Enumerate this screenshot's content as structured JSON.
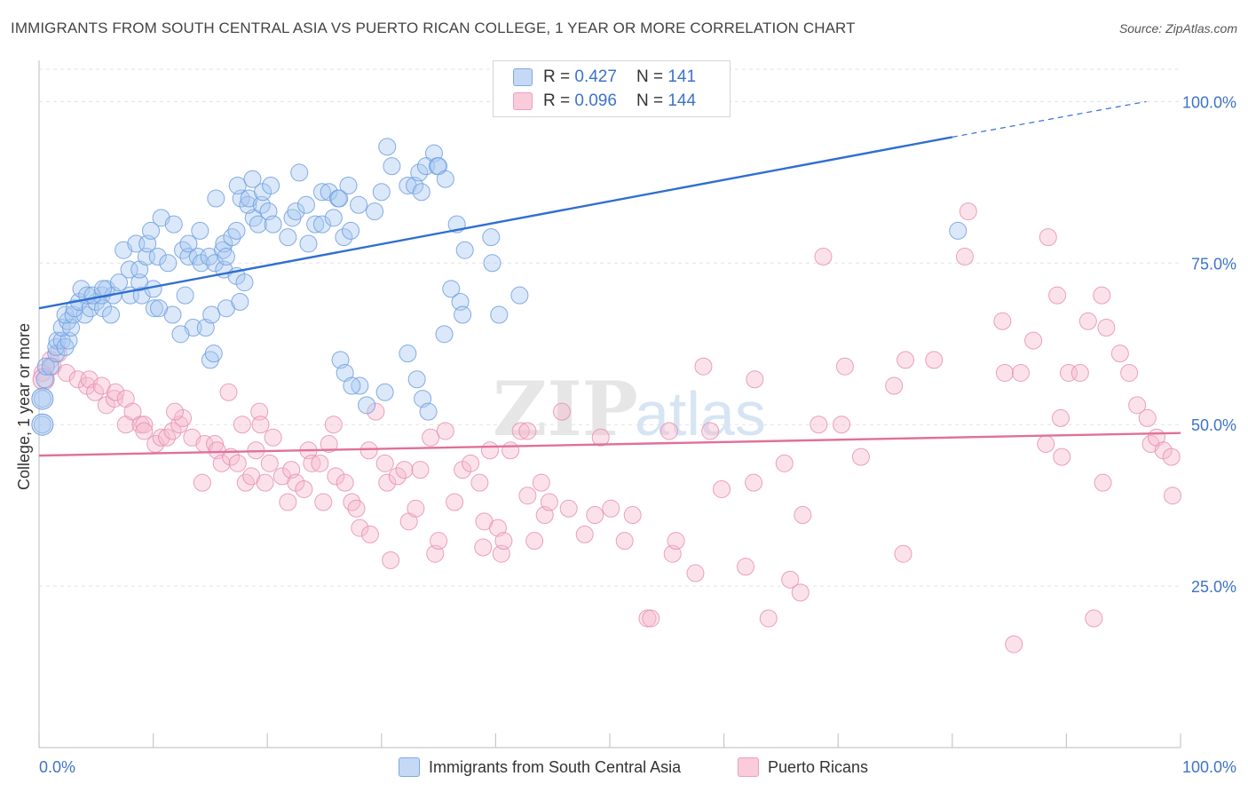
{
  "header": {
    "title": "IMMIGRANTS FROM SOUTH CENTRAL ASIA VS PUERTO RICAN COLLEGE, 1 YEAR OR MORE CORRELATION CHART",
    "source": "Source: ZipAtlas.com"
  },
  "watermark": {
    "zip": "ZIP",
    "atlas": "atlas"
  },
  "legend": {
    "r_label": "R =",
    "n_label": "N =",
    "series": [
      {
        "r": "0.427",
        "n": "141"
      },
      {
        "r": "0.096",
        "n": "144"
      }
    ]
  },
  "colors": {
    "blue_fill": "#a9c8f0",
    "blue_stroke": "#6f9fe0",
    "blue_line": "#2f6fd0",
    "pink_fill": "#f6b9cd",
    "pink_stroke": "#e890b0",
    "pink_line": "#e0709a",
    "axis_label": "#3d73c9",
    "grid": "#e3e3e3"
  },
  "chart_data": {
    "type": "scatter",
    "title": "IMMIGRANTS FROM SOUTH CENTRAL ASIA VS PUERTO RICAN COLLEGE, 1 YEAR OR MORE CORRELATION CHART",
    "xlabel": "",
    "ylabel": "College, 1 year or more",
    "xlim": [
      0,
      100
    ],
    "ylim": [
      0,
      105
    ],
    "x_tick_labels": [
      "0.0%",
      "100.0%"
    ],
    "y_ticks": [
      25,
      50,
      75,
      100
    ],
    "y_tick_labels": [
      "25.0%",
      "50.0%",
      "75.0%",
      "100.0%"
    ],
    "grid": true,
    "series": [
      {
        "name": "Immigrants from South Central Asia",
        "color": "blue",
        "trend": {
          "x0": 0,
          "y0": 68,
          "x1": 80,
          "y1": 94.5,
          "dash_to_x": 97,
          "dash_to_y": 100
        },
        "points": [
          [
            0.3,
            50
          ],
          [
            0.3,
            54
          ],
          [
            0.5,
            57
          ],
          [
            0.6,
            59
          ],
          [
            1.0,
            59
          ],
          [
            1.5,
            61
          ],
          [
            1.5,
            62
          ],
          [
            1.6,
            63
          ],
          [
            2.0,
            63
          ],
          [
            2.3,
            62
          ],
          [
            2.6,
            63
          ],
          [
            2.0,
            65
          ],
          [
            2.5,
            66
          ],
          [
            2.8,
            65
          ],
          [
            2.3,
            67
          ],
          [
            3.0,
            67
          ],
          [
            4.0,
            67
          ],
          [
            3.1,
            68
          ],
          [
            3.5,
            69
          ],
          [
            4.5,
            68
          ],
          [
            5.0,
            69
          ],
          [
            5.6,
            68
          ],
          [
            6.3,
            67
          ],
          [
            5.5,
            70
          ],
          [
            3.7,
            71
          ],
          [
            4.2,
            70
          ],
          [
            4.7,
            70
          ],
          [
            5.9,
            71
          ],
          [
            6.5,
            70
          ],
          [
            8.0,
            70
          ],
          [
            9.0,
            70
          ],
          [
            10.1,
            68
          ],
          [
            11.7,
            67
          ],
          [
            7.0,
            72
          ],
          [
            8.8,
            72
          ],
          [
            10.0,
            71
          ],
          [
            10.5,
            68
          ],
          [
            12.8,
            70
          ],
          [
            13.5,
            65
          ],
          [
            12.4,
            64
          ],
          [
            14.6,
            65
          ],
          [
            15.0,
            60
          ],
          [
            15.3,
            61
          ],
          [
            15.1,
            67
          ],
          [
            16.4,
            68
          ],
          [
            17.6,
            69
          ],
          [
            5.6,
            71
          ],
          [
            7.9,
            74
          ],
          [
            8.8,
            74
          ],
          [
            9.4,
            76
          ],
          [
            10.4,
            76
          ],
          [
            7.4,
            77
          ],
          [
            8.5,
            78
          ],
          [
            9.5,
            78
          ],
          [
            9.8,
            80
          ],
          [
            10.7,
            82
          ],
          [
            11.8,
            81
          ],
          [
            12.6,
            77
          ],
          [
            13.1,
            76
          ],
          [
            11.3,
            75
          ],
          [
            13.9,
            76
          ],
          [
            14.2,
            75
          ],
          [
            14.9,
            76
          ],
          [
            13.1,
            78
          ],
          [
            14.1,
            80
          ],
          [
            16.1,
            77
          ],
          [
            16.2,
            78
          ],
          [
            15.4,
            75
          ],
          [
            16.2,
            74
          ],
          [
            17.3,
            73
          ],
          [
            18.0,
            72
          ],
          [
            16.4,
            76
          ],
          [
            16.9,
            79
          ],
          [
            15.5,
            85
          ],
          [
            17.3,
            80
          ],
          [
            17.7,
            85
          ],
          [
            18.8,
            82
          ],
          [
            18.3,
            84
          ],
          [
            17.4,
            87
          ],
          [
            18.4,
            85
          ],
          [
            18.7,
            88
          ],
          [
            19.5,
            84
          ],
          [
            20.1,
            83
          ],
          [
            19.2,
            81
          ],
          [
            19.6,
            86
          ],
          [
            20.3,
            87
          ],
          [
            20.5,
            81
          ],
          [
            21.8,
            79
          ],
          [
            22.2,
            82
          ],
          [
            22.5,
            83
          ],
          [
            23.6,
            78
          ],
          [
            22.8,
            89
          ],
          [
            24.2,
            81
          ],
          [
            24.8,
            81
          ],
          [
            23.4,
            84
          ],
          [
            24.8,
            86
          ],
          [
            25.4,
            86
          ],
          [
            26.2,
            85
          ],
          [
            25.8,
            82
          ],
          [
            26.7,
            79
          ],
          [
            26.3,
            85
          ],
          [
            27.1,
            87
          ],
          [
            27.3,
            80
          ],
          [
            28.0,
            84
          ],
          [
            29.4,
            83
          ],
          [
            30.0,
            86
          ],
          [
            30.5,
            93
          ],
          [
            30.9,
            90
          ],
          [
            32.3,
            87
          ],
          [
            32.9,
            87
          ],
          [
            33.3,
            89
          ],
          [
            33.5,
            86
          ],
          [
            33.9,
            90
          ],
          [
            34.6,
            92
          ],
          [
            34.9,
            90
          ],
          [
            35.0,
            90
          ],
          [
            35.6,
            88
          ],
          [
            36.6,
            81
          ],
          [
            37.3,
            77
          ],
          [
            39.6,
            79
          ],
          [
            39.7,
            75
          ],
          [
            42.1,
            70
          ],
          [
            40.3,
            67
          ],
          [
            36.1,
            71
          ],
          [
            36.9,
            69
          ],
          [
            37.1,
            67
          ],
          [
            32.3,
            61
          ],
          [
            33.1,
            57
          ],
          [
            33.6,
            54
          ],
          [
            34.1,
            52
          ],
          [
            28.1,
            56
          ],
          [
            30.3,
            55
          ],
          [
            26.4,
            60
          ],
          [
            26.8,
            58
          ],
          [
            27.4,
            56
          ],
          [
            28.7,
            53
          ],
          [
            35.5,
            64
          ],
          [
            80.5,
            80
          ]
        ]
      },
      {
        "name": "Puerto Ricans",
        "color": "pink",
        "trend": {
          "x0": 0,
          "y0": 45.2,
          "x1": 100,
          "y1": 48.7
        },
        "points": [
          [
            0.3,
            58
          ],
          [
            1.0,
            60
          ],
          [
            1.2,
            59
          ],
          [
            1.7,
            61
          ],
          [
            2.4,
            58
          ],
          [
            3.4,
            57
          ],
          [
            4.2,
            56
          ],
          [
            4.4,
            57
          ],
          [
            4.9,
            55
          ],
          [
            5.5,
            56
          ],
          [
            5.9,
            53
          ],
          [
            6.6,
            54
          ],
          [
            6.7,
            55
          ],
          [
            7.6,
            54
          ],
          [
            7.6,
            50
          ],
          [
            8.2,
            52
          ],
          [
            8.9,
            50
          ],
          [
            9.2,
            50
          ],
          [
            9.2,
            49
          ],
          [
            10.2,
            47
          ],
          [
            10.7,
            48
          ],
          [
            11.2,
            48
          ],
          [
            11.7,
            49
          ],
          [
            12.3,
            50
          ],
          [
            12.6,
            51
          ],
          [
            11.9,
            52
          ],
          [
            13.4,
            48
          ],
          [
            14.3,
            41
          ],
          [
            14.5,
            47
          ],
          [
            15.4,
            47
          ],
          [
            15.6,
            46
          ],
          [
            16.0,
            44
          ],
          [
            16.6,
            55
          ],
          [
            16.8,
            45
          ],
          [
            17.4,
            44
          ],
          [
            17.8,
            50
          ],
          [
            18.1,
            41
          ],
          [
            18.6,
            42
          ],
          [
            19.0,
            46
          ],
          [
            19.3,
            52
          ],
          [
            19.4,
            50
          ],
          [
            19.8,
            41
          ],
          [
            20.2,
            44
          ],
          [
            20.5,
            48
          ],
          [
            21.3,
            42
          ],
          [
            21.8,
            38
          ],
          [
            22.1,
            43
          ],
          [
            22.5,
            41
          ],
          [
            23.2,
            40
          ],
          [
            23.6,
            46
          ],
          [
            23.9,
            44
          ],
          [
            24.6,
            44
          ],
          [
            24.9,
            38
          ],
          [
            25.4,
            47
          ],
          [
            25.8,
            50
          ],
          [
            26.0,
            42
          ],
          [
            26.8,
            41
          ],
          [
            27.4,
            38
          ],
          [
            27.8,
            37
          ],
          [
            28.1,
            34
          ],
          [
            28.9,
            46
          ],
          [
            29.0,
            33
          ],
          [
            29.5,
            52
          ],
          [
            30.3,
            44
          ],
          [
            30.5,
            41
          ],
          [
            30.8,
            29
          ],
          [
            31.4,
            42
          ],
          [
            32.0,
            43
          ],
          [
            32.4,
            35
          ],
          [
            33.0,
            37
          ],
          [
            33.4,
            43
          ],
          [
            34.3,
            48
          ],
          [
            34.7,
            30
          ],
          [
            35.0,
            32
          ],
          [
            35.6,
            49
          ],
          [
            36.4,
            38
          ],
          [
            37.1,
            43
          ],
          [
            37.8,
            44
          ],
          [
            38.6,
            41
          ],
          [
            38.9,
            31
          ],
          [
            39.0,
            35
          ],
          [
            39.5,
            46
          ],
          [
            40.2,
            34
          ],
          [
            40.5,
            30
          ],
          [
            40.7,
            32
          ],
          [
            41.3,
            46
          ],
          [
            42.2,
            49
          ],
          [
            42.8,
            49
          ],
          [
            42.8,
            39
          ],
          [
            43.4,
            32
          ],
          [
            44.0,
            41
          ],
          [
            44.3,
            36
          ],
          [
            44.7,
            38
          ],
          [
            45.8,
            52
          ],
          [
            46.4,
            37
          ],
          [
            47.8,
            33
          ],
          [
            48.7,
            36
          ],
          [
            49.2,
            48
          ],
          [
            50.1,
            37
          ],
          [
            51.3,
            32
          ],
          [
            52.0,
            36
          ],
          [
            53.3,
            20
          ],
          [
            53.6,
            20
          ],
          [
            55.2,
            49
          ],
          [
            55.5,
            30
          ],
          [
            55.8,
            32
          ],
          [
            57.5,
            27
          ],
          [
            58.2,
            59
          ],
          [
            58.8,
            49
          ],
          [
            59.8,
            40
          ],
          [
            61.9,
            28
          ],
          [
            62.6,
            41
          ],
          [
            62.7,
            57
          ],
          [
            63.9,
            20
          ],
          [
            65.3,
            44
          ],
          [
            65.8,
            26
          ],
          [
            66.7,
            24
          ],
          [
            66.9,
            36
          ],
          [
            68.3,
            50
          ],
          [
            68.7,
            76
          ],
          [
            70.3,
            50
          ],
          [
            70.6,
            59
          ],
          [
            72.0,
            45
          ],
          [
            74.9,
            56
          ],
          [
            75.7,
            30
          ],
          [
            75.9,
            60
          ],
          [
            78.4,
            60
          ],
          [
            81.1,
            76
          ],
          [
            81.4,
            83
          ],
          [
            84.4,
            66
          ],
          [
            84.6,
            58
          ],
          [
            85.4,
            16
          ],
          [
            86.0,
            58
          ],
          [
            87.1,
            63
          ],
          [
            88.2,
            47
          ],
          [
            88.4,
            79
          ],
          [
            89.2,
            70
          ],
          [
            89.5,
            51
          ],
          [
            89.6,
            45
          ],
          [
            90.2,
            58
          ],
          [
            91.2,
            58
          ],
          [
            91.9,
            66
          ],
          [
            92.4,
            20
          ],
          [
            93.1,
            70
          ],
          [
            93.2,
            41
          ],
          [
            93.5,
            65
          ],
          [
            94.7,
            61
          ],
          [
            95.5,
            58
          ],
          [
            96.2,
            53
          ],
          [
            97.1,
            51
          ],
          [
            97.4,
            47
          ],
          [
            97.9,
            48
          ],
          [
            98.5,
            46
          ],
          [
            99.2,
            45
          ],
          [
            99.3,
            39
          ]
        ]
      }
    ]
  },
  "axes": {
    "ylabel": "College, 1 year or more",
    "x_left": "0.0%",
    "x_right": "100.0%",
    "y_labels": [
      "100.0%",
      "75.0%",
      "50.0%",
      "25.0%"
    ]
  },
  "bottom_legend": {
    "items": [
      {
        "label": "Immigrants from South Central Asia"
      },
      {
        "label": "Puerto Ricans"
      }
    ]
  }
}
